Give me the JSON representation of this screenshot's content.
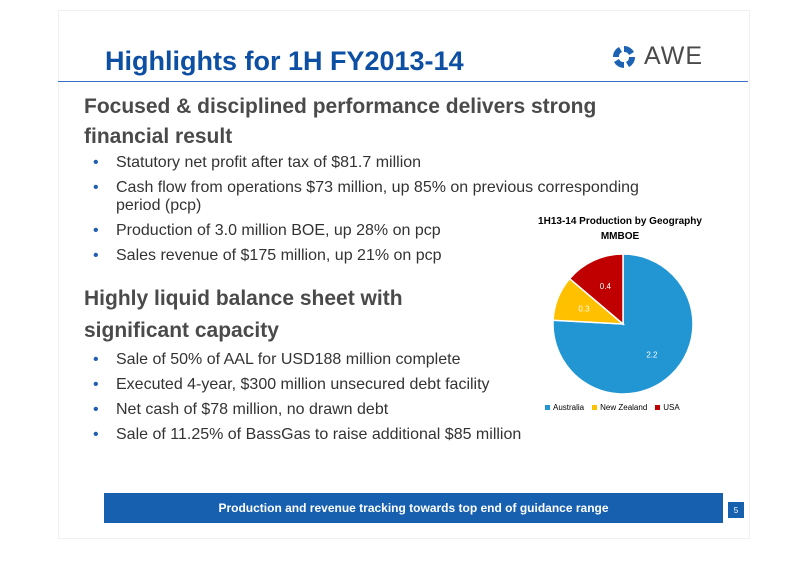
{
  "title": "Highlights for 1H FY2013-14",
  "logo": {
    "text": "AWE"
  },
  "sections": [
    {
      "heading_lines": [
        "Focused & disciplined performance delivers strong",
        "financial result"
      ],
      "bullets": [
        [
          "Statutory net profit after tax of $81.7 million"
        ],
        [
          "Cash flow from operations $73 million, up 85% on previous corresponding",
          "period (pcp)"
        ],
        [
          "Production of 3.0 million BOE, up 28% on pcp"
        ],
        [
          "Sales revenue of $175 million, up 21% on pcp"
        ]
      ]
    },
    {
      "heading_lines": [
        "Highly liquid balance sheet with",
        "significant capacity"
      ],
      "bullets": [
        [
          "Sale of 50% of AAL for USD188 million complete"
        ],
        [
          "Executed 4-year, $300 million unsecured debt facility"
        ],
        [
          "Net cash of $78 million, no drawn debt"
        ],
        [
          "Sale of 11.25% of BassGas to raise additional $85 million"
        ]
      ]
    }
  ],
  "chart_data": {
    "type": "pie",
    "title": "1H13-14 Production by Geography",
    "subtitle": "MMBOE",
    "categories": [
      "Australia",
      "New Zealand",
      "USA"
    ],
    "values": [
      2.2,
      0.3,
      0.4
    ],
    "colors": [
      "#2196d3",
      "#ffc000",
      "#c00000"
    ],
    "legend_position": "bottom"
  },
  "banner": "Production and revenue tracking towards top end of guidance range",
  "page_number": "5"
}
